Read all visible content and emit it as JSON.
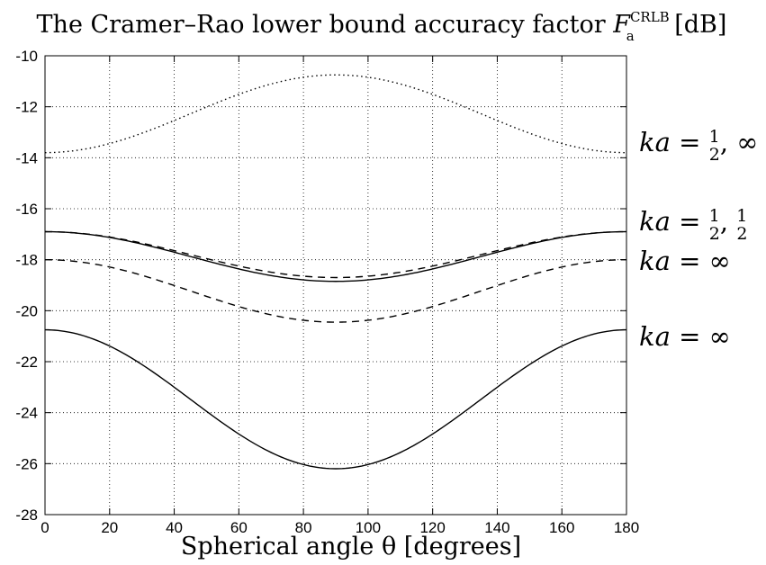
{
  "chart_data": {
    "type": "line",
    "title": "The Cramer–Rao lower bound accuracy factor F_a^CRLB [dB]",
    "title_parts": {
      "prefix": "The Cramer–Rao lower bound accuracy factor ",
      "symbol": "F",
      "subscript": "a",
      "superscript": "CRLB",
      "suffix": " [dB]"
    },
    "xlabel": "Spherical angle θ [degrees]",
    "ylabel": "",
    "xlim": [
      0,
      180
    ],
    "ylim": [
      -28,
      -10
    ],
    "x_ticks": [
      0,
      20,
      40,
      60,
      80,
      100,
      120,
      140,
      160,
      180
    ],
    "y_ticks": [
      -10,
      -12,
      -14,
      -16,
      -18,
      -20,
      -22,
      -24,
      -26,
      -28
    ],
    "x_tick_labels": [
      "0",
      "20",
      "40",
      "60",
      "80",
      "100",
      "120",
      "140",
      "160",
      "180"
    ],
    "y_tick_labels": [
      "-10",
      "-12",
      "-14",
      "-16",
      "-18",
      "-20",
      "-22",
      "-24",
      "-26",
      "-28"
    ],
    "grid": true,
    "series": [
      {
        "style": "dotted",
        "color": "#000000",
        "x": [
          0,
          90,
          180
        ],
        "y": [
          -13.8,
          -10.75,
          -13.8
        ]
      },
      {
        "style": "dashed",
        "color": "#000000",
        "x": [
          0,
          90,
          180
        ],
        "y": [
          -16.9,
          -18.7,
          -16.9
        ]
      },
      {
        "style": "solid",
        "color": "#000000",
        "x": [
          0,
          90,
          180
        ],
        "y": [
          -16.9,
          -18.85,
          -16.9
        ]
      },
      {
        "style": "dashed",
        "color": "#000000",
        "x": [
          0,
          90,
          180
        ],
        "y": [
          -18.0,
          -20.45,
          -18.0
        ]
      },
      {
        "style": "solid",
        "color": "#000000",
        "x": [
          0,
          90,
          180
        ],
        "y": [
          -20.75,
          -26.2,
          -20.75
        ]
      }
    ],
    "annotations": [
      {
        "text": "ka = 1/2, ∞",
        "y": -13.4
      },
      {
        "text": "ka = 1/2, 1/2",
        "y": -16.9
      },
      {
        "text": "ka = ∞",
        "y": -18.0
      },
      {
        "text": "ka = ∞",
        "y": -20.75
      }
    ]
  }
}
